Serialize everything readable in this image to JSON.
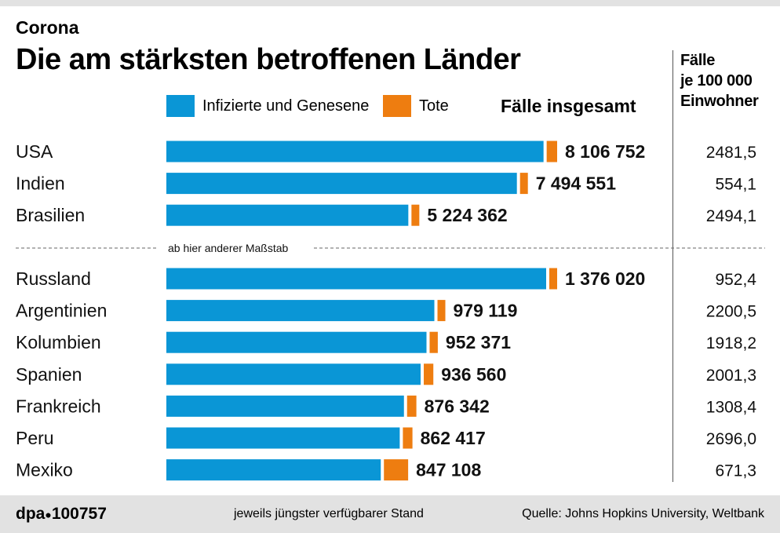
{
  "header": {
    "overline": "Corona",
    "title": "Die am stärksten betroffenen Länder"
  },
  "legend": {
    "infected_label": "Infizierte und Genesene",
    "dead_label": "Tote"
  },
  "columns": {
    "total_header": "Fälle insgesamt",
    "per_capita_header_lines": [
      "Fälle",
      "je 100 000",
      "Einwohner"
    ]
  },
  "colors": {
    "infected": "#0a96d6",
    "dead": "#ee7d10",
    "divider": "#555555",
    "footer_bg": "#e2e2e2"
  },
  "scale_note": "ab hier anderer Maßstab",
  "footer": {
    "id_prefix": "dpa",
    "id_number": "100757",
    "note": "jeweils jüngster verfügbarer Stand",
    "source": "Quelle: Johns Hopkins University, Weltbank"
  },
  "chart_data": {
    "type": "bar",
    "orientation": "horizontal",
    "stacked": true,
    "groups": [
      {
        "countries": [
          "USA",
          "Indien",
          "Brasilien"
        ],
        "totals": [
          8106752,
          7494551,
          5224362
        ],
        "total_labels": [
          "8 106 752",
          "7 494 551",
          "5 224 362"
        ],
        "deaths": [
          219000,
          114000,
          154000
        ],
        "per_100k": [
          "2481,5",
          "554,1",
          "2494,1"
        ]
      },
      {
        "countries": [
          "Russland",
          "Argentinien",
          "Kolumbien",
          "Spanien",
          "Frankreich",
          "Peru",
          "Mexiko"
        ],
        "totals": [
          1376020,
          979119,
          952371,
          936560,
          876342,
          862417,
          847108
        ],
        "total_labels": [
          "1 376 020",
          "979 119",
          "952 371",
          "936 560",
          "876 342",
          "862 417",
          "847 108"
        ],
        "deaths": [
          24000,
          26000,
          29000,
          34000,
          33000,
          34000,
          86000
        ],
        "per_100k": [
          "952,4",
          "2200,5",
          "1918,2",
          "2001,3",
          "1308,4",
          "2696,0",
          "671,3"
        ]
      }
    ]
  }
}
